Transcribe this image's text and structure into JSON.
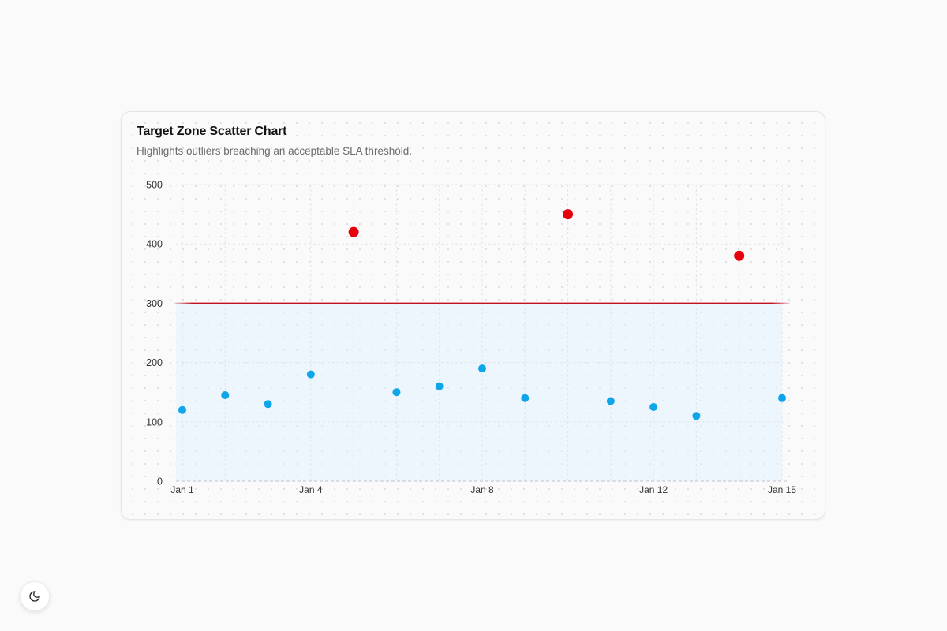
{
  "card": {
    "title": "Target Zone Scatter Chart",
    "subtitle": "Highlights outliers breaching an acceptable SLA threshold."
  },
  "theme_toggle": {
    "icon": "moon-icon"
  },
  "colors": {
    "point_normal": "#0ea5e9",
    "point_outlier": "#e7000b",
    "threshold_line": "#c1121f",
    "target_zone_fill": "#e0f2fe"
  },
  "chart_data": {
    "type": "scatter",
    "title": "Target Zone Scatter Chart",
    "subtitle": "Highlights outliers breaching an acceptable SLA threshold.",
    "x": [
      "Jan 1",
      "Jan 2",
      "Jan 3",
      "Jan 4",
      "Jan 5",
      "Jan 6",
      "Jan 7",
      "Jan 8",
      "Jan 9",
      "Jan 10",
      "Jan 11",
      "Jan 12",
      "Jan 13",
      "Jan 14",
      "Jan 15"
    ],
    "points": [
      {
        "x": "Jan 1",
        "y": 120
      },
      {
        "x": "Jan 2",
        "y": 145
      },
      {
        "x": "Jan 3",
        "y": 130
      },
      {
        "x": "Jan 4",
        "y": 180
      },
      {
        "x": "Jan 5",
        "y": 420
      },
      {
        "x": "Jan 6",
        "y": 150
      },
      {
        "x": "Jan 7",
        "y": 160
      },
      {
        "x": "Jan 8",
        "y": 190
      },
      {
        "x": "Jan 9",
        "y": 140
      },
      {
        "x": "Jan 10",
        "y": 450
      },
      {
        "x": "Jan 11",
        "y": 135
      },
      {
        "x": "Jan 12",
        "y": 125
      },
      {
        "x": "Jan 13",
        "y": 110
      },
      {
        "x": "Jan 14",
        "y": 380
      },
      {
        "x": "Jan 15",
        "y": 140
      }
    ],
    "x_tick_labels": [
      "Jan 1",
      "Jan 4",
      "Jan 8",
      "Jan 12",
      "Jan 15"
    ],
    "y_ticks": [
      0,
      100,
      200,
      300,
      400,
      500
    ],
    "ylim": [
      0,
      500
    ],
    "threshold": 300,
    "target_zone": [
      0,
      300
    ],
    "grid": true,
    "legend": "none"
  }
}
